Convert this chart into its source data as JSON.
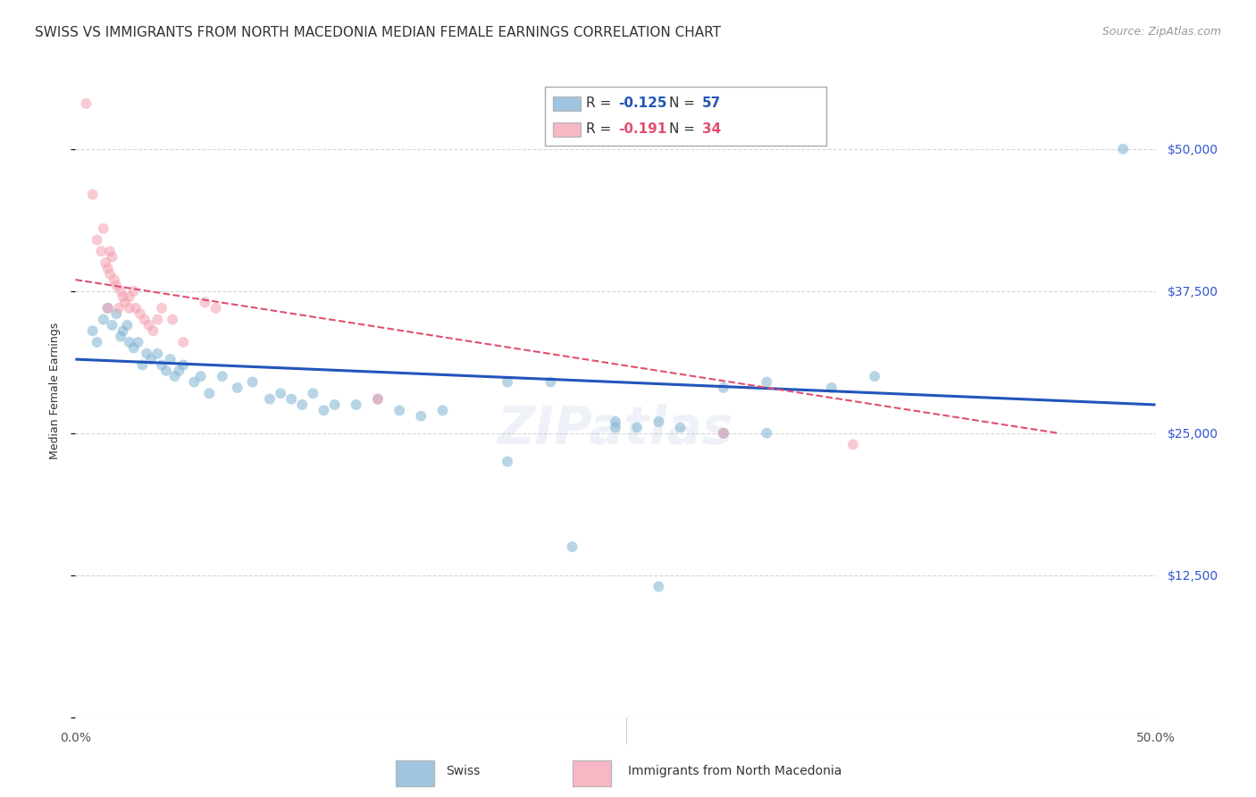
{
  "title": "SWISS VS IMMIGRANTS FROM NORTH MACEDONIA MEDIAN FEMALE EARNINGS CORRELATION CHART",
  "source": "Source: ZipAtlas.com",
  "ylabel": "Median Female Earnings",
  "xlim": [
    0.0,
    0.5
  ],
  "ylim": [
    0,
    57500
  ],
  "yticks": [
    0,
    12500,
    25000,
    37500,
    50000
  ],
  "xticks": [
    0.0,
    0.1,
    0.2,
    0.3,
    0.4,
    0.5
  ],
  "xtick_labels": [
    "0.0%",
    "",
    "",
    "",
    "",
    "50.0%"
  ],
  "ytick_labels": [
    "",
    "$12,500",
    "$25,000",
    "$37,500",
    "$50,000"
  ],
  "blue_scatter_x": [
    0.008,
    0.01,
    0.013,
    0.015,
    0.017,
    0.019,
    0.021,
    0.022,
    0.024,
    0.025,
    0.027,
    0.029,
    0.031,
    0.033,
    0.035,
    0.038,
    0.04,
    0.042,
    0.044,
    0.046,
    0.048,
    0.05,
    0.055,
    0.058,
    0.062,
    0.068,
    0.075,
    0.082,
    0.09,
    0.095,
    0.1,
    0.105,
    0.11,
    0.115,
    0.12,
    0.13,
    0.14,
    0.15,
    0.16,
    0.17,
    0.2,
    0.22,
    0.25,
    0.27,
    0.3,
    0.32,
    0.35,
    0.37,
    0.25,
    0.26,
    0.28,
    0.3,
    0.32,
    0.2,
    0.23,
    0.485,
    0.27
  ],
  "blue_scatter_y": [
    34000,
    33000,
    35000,
    36000,
    34500,
    35500,
    33500,
    34000,
    34500,
    33000,
    32500,
    33000,
    31000,
    32000,
    31500,
    32000,
    31000,
    30500,
    31500,
    30000,
    30500,
    31000,
    29500,
    30000,
    28500,
    30000,
    29000,
    29500,
    28000,
    28500,
    28000,
    27500,
    28500,
    27000,
    27500,
    27500,
    28000,
    27000,
    26500,
    27000,
    29500,
    29500,
    26000,
    26000,
    29000,
    29500,
    29000,
    30000,
    25500,
    25500,
    25500,
    25000,
    25000,
    22500,
    15000,
    50000,
    11500
  ],
  "pink_scatter_x": [
    0.005,
    0.008,
    0.01,
    0.012,
    0.014,
    0.015,
    0.016,
    0.017,
    0.018,
    0.019,
    0.021,
    0.022,
    0.023,
    0.025,
    0.027,
    0.028,
    0.03,
    0.032,
    0.034,
    0.036,
    0.038,
    0.04,
    0.045,
    0.05,
    0.06,
    0.065,
    0.02,
    0.015,
    0.14,
    0.3,
    0.36,
    0.013,
    0.016,
    0.025
  ],
  "pink_scatter_y": [
    54000,
    46000,
    42000,
    41000,
    40000,
    39500,
    39000,
    40500,
    38500,
    38000,
    37500,
    37000,
    36500,
    36000,
    37500,
    36000,
    35500,
    35000,
    34500,
    34000,
    35000,
    36000,
    35000,
    33000,
    36500,
    36000,
    36000,
    36000,
    28000,
    25000,
    24000,
    43000,
    41000,
    37000
  ],
  "blue_line_x": [
    0.0,
    0.5
  ],
  "blue_line_y": [
    31500,
    27500
  ],
  "pink_line_x": [
    0.0,
    0.455
  ],
  "pink_line_y": [
    38500,
    25000
  ],
  "watermark": "ZIPatlas",
  "background_color": "#ffffff",
  "scatter_alpha": 0.55,
  "scatter_size": 75,
  "blue_color": "#7fb3d3",
  "pink_color": "#f4a0b0",
  "blue_line_color": "#2255bb",
  "pink_line_color": "#e05070",
  "pink_line_style": "--",
  "grid_color": "#cccccc",
  "grid_linestyle": "--",
  "title_fontsize": 11,
  "source_fontsize": 9,
  "ylabel_fontsize": 9,
  "tick_fontsize": 10,
  "legend_fontsize": 11,
  "watermark_fontsize": 42,
  "watermark_alpha": 0.12,
  "watermark_color": "#7799cc",
  "ytick_color": "#3355cc",
  "bottom_legend_labels": [
    "Swiss",
    "Immigrants from North Macedonia"
  ]
}
